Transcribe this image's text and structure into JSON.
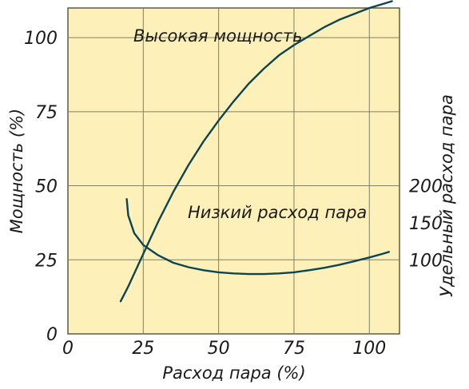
{
  "chart_data": {
    "type": "line",
    "xlabel": "Расход пара (%)",
    "ylabel": "Мощность (%)",
    "y2label": "Удельный расход пара",
    "xlim": [
      0,
      110
    ],
    "ylim": [
      0,
      110
    ],
    "x_ticks": [
      "0",
      "25",
      "50",
      "75",
      "100"
    ],
    "y_ticks": [
      "0",
      "25",
      "50",
      "75",
      "100"
    ],
    "y2_ticks": [
      "100",
      "150",
      "200"
    ],
    "background": "#fdf0b8",
    "line_color": "#0d4453",
    "grid": true,
    "series": [
      {
        "name": "Высокая мощность",
        "axis": "left",
        "x": [
          17.5,
          20,
          25,
          30,
          35,
          40,
          45,
          50,
          55,
          60,
          65,
          70,
          75,
          80,
          85,
          90,
          95,
          100,
          105,
          107.5
        ],
        "y": [
          11,
          16,
          27,
          38,
          48,
          57,
          65,
          72,
          78.5,
          84.5,
          89.5,
          94,
          97.5,
          100.5,
          103.5,
          106,
          108,
          110,
          111.5,
          112.3
        ]
      },
      {
        "name": "Низкий расход пара",
        "axis": "left",
        "x": [
          19.5,
          20,
          22,
          25,
          30,
          35,
          40,
          45,
          50,
          55,
          60,
          65,
          70,
          75,
          80,
          85,
          90,
          95,
          100,
          105,
          106.5
        ],
        "y": [
          45.5,
          40,
          34,
          30,
          26.5,
          24,
          22.5,
          21.5,
          20.8,
          20.4,
          20.2,
          20.2,
          20.4,
          20.8,
          21.5,
          22.3,
          23.3,
          24.5,
          25.8,
          27.2,
          27.7
        ]
      }
    ]
  }
}
